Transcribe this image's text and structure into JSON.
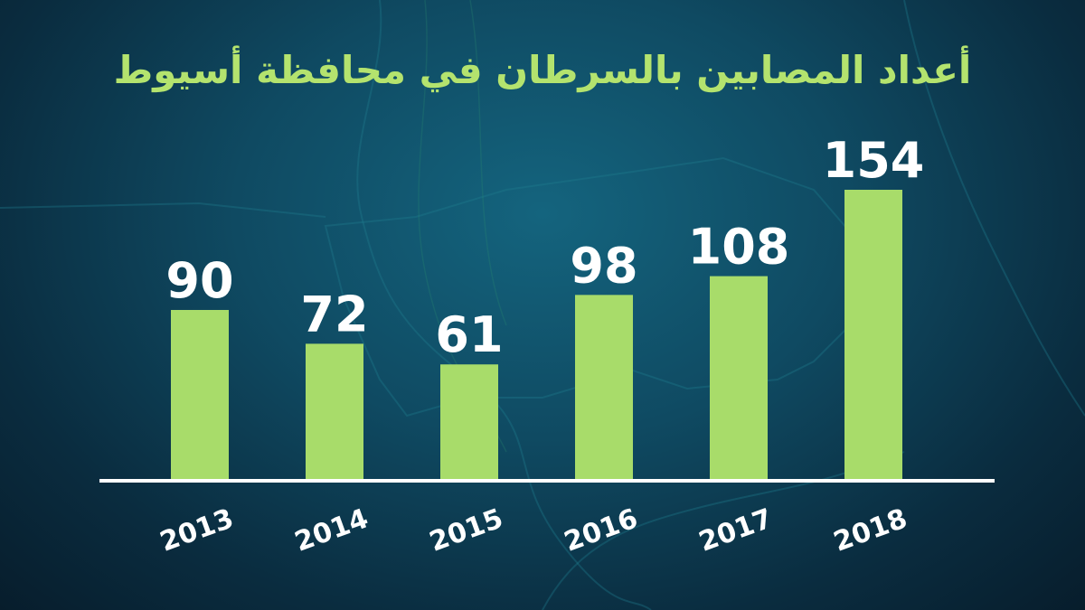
{
  "colors": {
    "title": "#b4e36e",
    "bar": "#a8dc6a",
    "baseline": "#ffffff",
    "labels": "#ffffff"
  },
  "chart_data": {
    "type": "bar",
    "title": "أعداد المصابين بالسرطان في محافظة أسيوط",
    "categories": [
      "2013",
      "2014",
      "2015",
      "2016",
      "2017",
      "2018"
    ],
    "values": [
      90,
      72,
      61,
      98,
      108,
      154
    ],
    "xlabel": "",
    "ylabel": "",
    "ylim": [
      0,
      154
    ],
    "grid": false,
    "legend": "none"
  }
}
